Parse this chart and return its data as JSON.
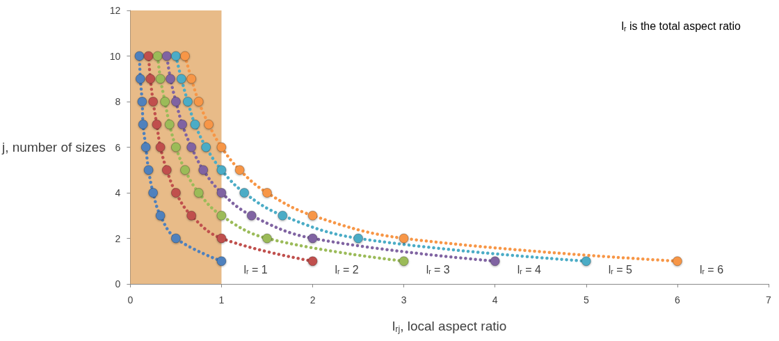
{
  "chart_data": {
    "type": "line",
    "xlabel": "l$_{rj}$, local aspect ratio",
    "ylabel": "j, number of sizes",
    "annotations": [
      "l$_{r}$ is the total aspect ratio"
    ],
    "xlim": [
      0,
      7
    ],
    "xticks": [
      0,
      1,
      2,
      3,
      4,
      5,
      6,
      7
    ],
    "ylim": [
      0,
      12
    ],
    "yticks": [
      0,
      2,
      4,
      6,
      8,
      10,
      12
    ],
    "grid": false,
    "legend": false,
    "marker": "circle",
    "line_style": "dotted",
    "bands": [
      {
        "axis": "x",
        "from": 0,
        "to": 1,
        "color": "#dfa15a"
      }
    ],
    "series": [
      {
        "name": "l$_{r}$ = 1",
        "color": "#4f81bd",
        "x": [
          1,
          0.5,
          0.33,
          0.25,
          0.2,
          0.17,
          0.14,
          0.13,
          0.11,
          0.1
        ],
        "values": [
          1,
          2,
          3,
          4,
          5,
          6,
          7,
          8,
          9,
          10
        ]
      },
      {
        "name": "l$_{r}$ = 2",
        "color": "#c0504d",
        "x": [
          2,
          1,
          0.67,
          0.5,
          0.4,
          0.33,
          0.29,
          0.25,
          0.22,
          0.2
        ],
        "values": [
          1,
          2,
          3,
          4,
          5,
          6,
          7,
          8,
          9,
          10
        ]
      },
      {
        "name": "l$_{r}$ = 3",
        "color": "#9bbb59",
        "x": [
          3,
          1.5,
          1,
          0.75,
          0.6,
          0.5,
          0.43,
          0.38,
          0.33,
          0.3
        ],
        "values": [
          1,
          2,
          3,
          4,
          5,
          6,
          7,
          8,
          9,
          10
        ]
      },
      {
        "name": "l$_{r}$ = 4",
        "color": "#8064a2",
        "x": [
          4,
          2,
          1.33,
          1,
          0.8,
          0.67,
          0.57,
          0.5,
          0.44,
          0.4
        ],
        "values": [
          1,
          2,
          3,
          4,
          5,
          6,
          7,
          8,
          9,
          10
        ]
      },
      {
        "name": "l$_{r}$ = 5",
        "color": "#4bacc6",
        "x": [
          5,
          2.5,
          1.67,
          1.25,
          1,
          0.83,
          0.71,
          0.63,
          0.56,
          0.5
        ],
        "values": [
          1,
          2,
          3,
          4,
          5,
          6,
          7,
          8,
          9,
          10
        ]
      },
      {
        "name": "l$_{r}$ = 6",
        "color": "#f79646",
        "x": [
          6,
          3,
          2,
          1.5,
          1.2,
          1,
          0.86,
          0.75,
          0.67,
          0.6
        ],
        "values": [
          1,
          2,
          3,
          4,
          5,
          6,
          7,
          8,
          9,
          10
        ]
      }
    ]
  }
}
